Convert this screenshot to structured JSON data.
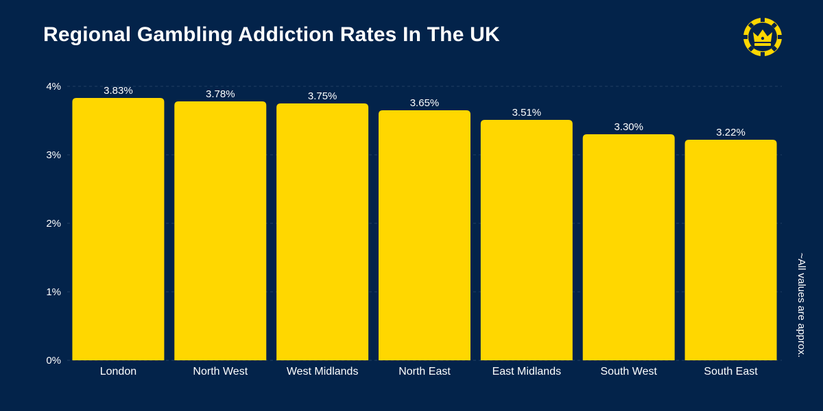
{
  "title": "Regional Gambling Addiction Rates In The UK",
  "footnote": "~All values are approx.",
  "logo": {
    "icon": "crown-chip-icon",
    "color": "#ffd700"
  },
  "colors": {
    "background": "#03234a",
    "bar": "#ffd700",
    "text": "#ffffff",
    "grid": "#223f63"
  },
  "chart_data": {
    "type": "bar",
    "title": "Regional Gambling Addiction Rates In The UK",
    "xlabel": "",
    "ylabel": "",
    "categories": [
      "London",
      "North West",
      "West Midlands",
      "North East",
      "East Midlands",
      "South West",
      "South East"
    ],
    "values": [
      3.83,
      3.78,
      3.75,
      3.65,
      3.51,
      3.3,
      3.22
    ],
    "data_labels": [
      "3.83%",
      "3.78%",
      "3.75%",
      "3.65%",
      "3.51%",
      "3.30%",
      "3.22%"
    ],
    "ylim": [
      0,
      4
    ],
    "yticks": [
      0,
      1,
      2,
      3,
      4
    ],
    "ytick_labels": [
      "0%",
      "1%",
      "2%",
      "3%",
      "4%"
    ],
    "grid": true,
    "legend": "none"
  }
}
